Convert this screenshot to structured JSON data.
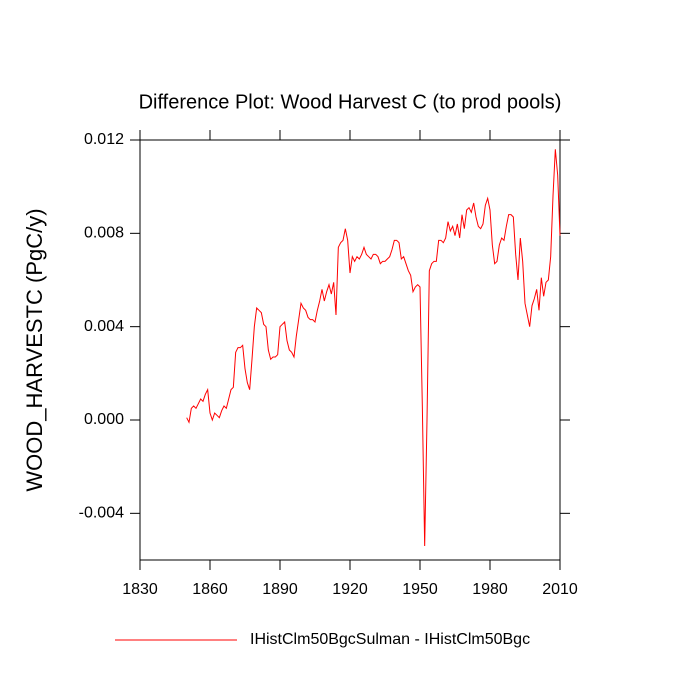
{
  "chart_data": {
    "type": "line",
    "title": "Difference Plot: Wood Harvest C (to prod pools)",
    "y_label": "WOOD_HARVESTC  (PgC/y)",
    "xlim": [
      1830,
      2010
    ],
    "xticks": [
      1830,
      1860,
      1890,
      1920,
      1950,
      1980,
      2010
    ],
    "ylim": [
      -0.006,
      0.012
    ],
    "yticks": [
      -0.004,
      {
        "value": 0,
        "label": "0.000"
      },
      0.004,
      0.008,
      0.012
    ],
    "legend_position": "bottom",
    "x": [
      1850,
      1851,
      1852,
      1853,
      1854,
      1855,
      1856,
      1857,
      1858,
      1859,
      1860,
      1861,
      1862,
      1863,
      1864,
      1865,
      1866,
      1867,
      1868,
      1869,
      1870,
      1871,
      1872,
      1873,
      1874,
      1875,
      1876,
      1877,
      1878,
      1879,
      1880,
      1881,
      1882,
      1883,
      1884,
      1885,
      1886,
      1887,
      1888,
      1889,
      1890,
      1891,
      1892,
      1893,
      1894,
      1895,
      1896,
      1897,
      1898,
      1899,
      1900,
      1901,
      1902,
      1903,
      1904,
      1905,
      1906,
      1907,
      1908,
      1909,
      1910,
      1911,
      1912,
      1913,
      1914,
      1915,
      1916,
      1917,
      1918,
      1919,
      1920,
      1921,
      1922,
      1923,
      1924,
      1925,
      1926,
      1927,
      1928,
      1929,
      1930,
      1931,
      1932,
      1933,
      1934,
      1935,
      1936,
      1937,
      1938,
      1939,
      1940,
      1941,
      1942,
      1943,
      1944,
      1945,
      1946,
      1947,
      1948,
      1949,
      1950,
      1951,
      1952,
      1953,
      1954,
      1955,
      1956,
      1957,
      1958,
      1959,
      1960,
      1961,
      1962,
      1963,
      1964,
      1965,
      1966,
      1967,
      1968,
      1969,
      1970,
      1971,
      1972,
      1973,
      1974,
      1975,
      1976,
      1977,
      1978,
      1979,
      1980,
      1981,
      1982,
      1983,
      1984,
      1985,
      1986,
      1987,
      1988,
      1989,
      1990,
      1991,
      1992,
      1993,
      1994,
      1995,
      1996,
      1997,
      1998,
      1999,
      2000,
      2001,
      2002,
      2003,
      2004,
      2005,
      2006,
      2007,
      2008,
      2009,
      2010
    ],
    "series": [
      {
        "name": "IHistClm50BgcSulman - IHistClm50Bgc",
        "color": "#ff0000",
        "values": [
          0.0001,
          -0.0001,
          0.0005,
          0.0006,
          0.0005,
          0.0007,
          0.0009,
          0.0008,
          0.0011,
          0.0013,
          0.0003,
          0.0,
          0.0003,
          0.0002,
          0.0001,
          0.0004,
          0.0006,
          0.0005,
          0.0009,
          0.0013,
          0.0014,
          0.0029,
          0.0031,
          0.0031,
          0.0032,
          0.0022,
          0.0016,
          0.0013,
          0.0026,
          0.004,
          0.0048,
          0.0047,
          0.0046,
          0.0041,
          0.004,
          0.003,
          0.0026,
          0.0027,
          0.0027,
          0.0028,
          0.004,
          0.0041,
          0.0042,
          0.0034,
          0.003,
          0.0029,
          0.0027,
          0.0036,
          0.0043,
          0.005,
          0.0048,
          0.0047,
          0.0044,
          0.0043,
          0.0043,
          0.0042,
          0.0047,
          0.0051,
          0.0056,
          0.0051,
          0.0055,
          0.0058,
          0.0054,
          0.0059,
          0.0045,
          0.0074,
          0.0076,
          0.0077,
          0.0082,
          0.0077,
          0.0063,
          0.007,
          0.0068,
          0.007,
          0.0069,
          0.0071,
          0.0074,
          0.0071,
          0.007,
          0.0069,
          0.0071,
          0.0071,
          0.007,
          0.0067,
          0.0068,
          0.0068,
          0.0069,
          0.007,
          0.0073,
          0.0077,
          0.0077,
          0.0076,
          0.0069,
          0.007,
          0.0067,
          0.0064,
          0.0062,
          0.0055,
          0.0057,
          0.0058,
          0.0057,
          0.0006,
          -0.0054,
          0.0,
          0.0064,
          0.0067,
          0.0068,
          0.0068,
          0.0077,
          0.0077,
          0.0076,
          0.0078,
          0.0085,
          0.0081,
          0.0083,
          0.0079,
          0.0084,
          0.0078,
          0.0088,
          0.0082,
          0.009,
          0.0091,
          0.0089,
          0.0093,
          0.0087,
          0.0083,
          0.0082,
          0.0084,
          0.0092,
          0.0095,
          0.009,
          0.0075,
          0.0067,
          0.0068,
          0.0075,
          0.0078,
          0.0077,
          0.0083,
          0.0088,
          0.0088,
          0.0087,
          0.0071,
          0.006,
          0.0078,
          0.0068,
          0.005,
          0.0045,
          0.004,
          0.0049,
          0.0052,
          0.0056,
          0.0047,
          0.0061,
          0.0053,
          0.0059,
          0.006,
          0.007,
          0.0096,
          0.0116,
          0.0105,
          0.0079
        ]
      }
    ]
  }
}
